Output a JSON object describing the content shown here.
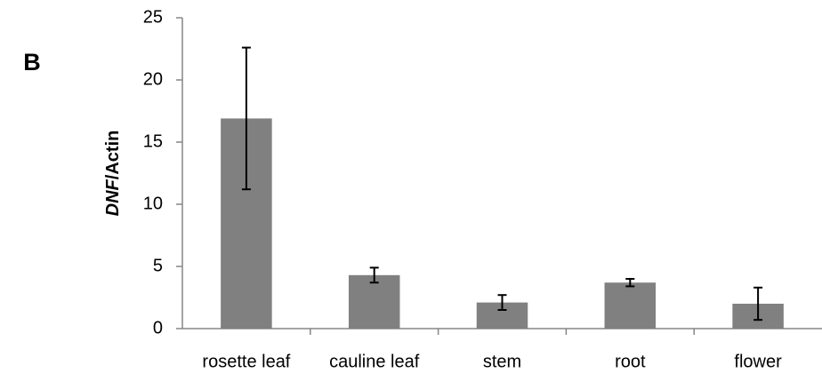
{
  "chart_data": {
    "type": "bar",
    "panel_label": "B",
    "ylabel": {
      "italic": "DNF",
      "plain": "/Actin"
    },
    "categories": [
      "rosette leaf",
      "cauline leaf",
      "stem",
      "root",
      "flower"
    ],
    "values": [
      16.9,
      4.3,
      2.1,
      3.7,
      2.0
    ],
    "errors": [
      5.7,
      0.6,
      0.6,
      0.3,
      1.3
    ],
    "color": "#808080",
    "ylim": [
      0,
      25
    ],
    "yticks": [
      0,
      5,
      10,
      15,
      20,
      25
    ],
    "grid": false
  }
}
